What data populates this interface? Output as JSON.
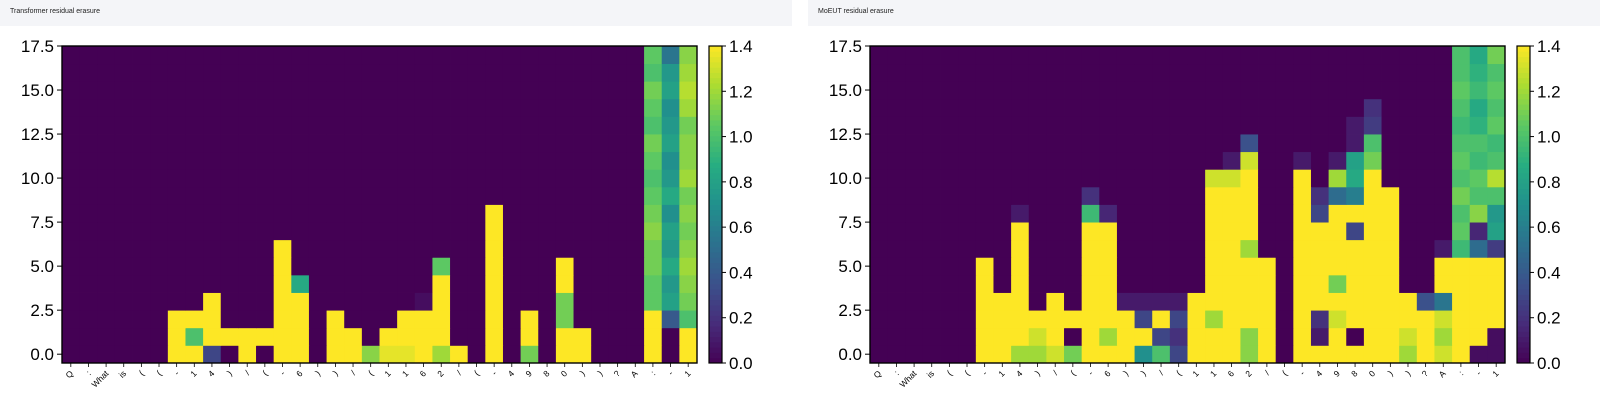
{
  "chart_data": [
    {
      "type": "heatmap",
      "title": "Transformer residual erasure",
      "x_tick_labels": [
        "Q",
        ":",
        "What",
        "is",
        "(",
        "(",
        "-",
        "1",
        "4",
        ")",
        "/",
        "(",
        "-",
        "6",
        ")",
        ")",
        "/",
        "(",
        "1",
        "1",
        "6",
        "2",
        "/",
        "(",
        "-",
        "4",
        "9",
        "8",
        "0",
        ")",
        ")",
        "?",
        "A",
        ":",
        "-",
        "1"
      ],
      "y_ticks": [
        0.0,
        2.5,
        5.0,
        7.5,
        10.0,
        12.5,
        15.0,
        17.5
      ],
      "y_tick_labels": [
        "0.0",
        "2.5",
        "5.0",
        "7.5",
        "10.0",
        "12.5",
        "15.0",
        "17.5"
      ],
      "ylim": [
        -0.5,
        17.5
      ],
      "colorbar": {
        "min": 0.0,
        "max": 1.4,
        "ticks": [
          "0.0",
          "0.2",
          "0.4",
          "0.6",
          "0.8",
          "1.0",
          "1.2",
          "1.4"
        ],
        "colormap": "viridis"
      },
      "columns": [
        {
          "x": 6,
          "base": [
            1.4,
            1.4,
            1.4
          ]
        },
        {
          "x": 7,
          "base": [
            1.4,
            1.0,
            1.4
          ]
        },
        {
          "x": 8,
          "base": [
            0.3,
            1.4,
            1.4,
            1.4
          ]
        },
        {
          "x": 9,
          "base": [
            0.0,
            1.4
          ]
        },
        {
          "x": 10,
          "base": [
            1.4,
            1.4
          ]
        },
        {
          "x": 11,
          "base": [
            0.0,
            1.4
          ]
        },
        {
          "x": 12,
          "base": [
            1.4,
            1.4,
            1.4,
            1.4,
            1.4,
            1.4,
            1.4
          ]
        },
        {
          "x": 13,
          "base": [
            1.4,
            1.4,
            1.4,
            1.4,
            0.85
          ]
        },
        {
          "x": 15,
          "base": [
            1.4,
            1.4,
            1.4
          ]
        },
        {
          "x": 16,
          "base": [
            1.4,
            1.4
          ]
        },
        {
          "x": 17,
          "base": [
            1.15
          ]
        },
        {
          "x": 18,
          "base": [
            1.35,
            1.4
          ]
        },
        {
          "x": 19,
          "base": [
            1.35,
            1.4,
            1.4
          ]
        },
        {
          "x": 20,
          "base": [
            1.4,
            1.4,
            1.4,
            0.05
          ]
        },
        {
          "x": 21,
          "base": [
            1.2,
            1.4,
            1.4,
            1.4,
            1.4,
            1.05
          ]
        },
        {
          "x": 22,
          "base": [
            1.4
          ]
        },
        {
          "x": 24,
          "base": [
            1.4,
            1.4,
            1.4,
            1.4,
            1.4,
            1.4,
            1.4,
            1.4,
            1.4
          ]
        },
        {
          "x": 26,
          "base": [
            1.1,
            1.4,
            1.4
          ]
        },
        {
          "x": 28,
          "base": [
            1.4,
            1.4,
            1.1,
            1.1,
            1.4,
            1.4
          ]
        },
        {
          "x": 29,
          "base": [
            1.4,
            1.4
          ]
        },
        {
          "x": 33,
          "base": [
            1.4,
            1.4,
            1.4
          ]
        },
        {
          "x": 35,
          "base": [
            1.4,
            1.4,
            1.0
          ]
        }
      ],
      "stripes": [
        {
          "x": 33,
          "from": 3,
          "values": [
            1.05,
            1.05,
            1.1,
            1.1,
            1.15,
            1.1,
            1.05,
            1.0,
            1.05,
            1.1,
            1.0,
            1.05,
            1.1,
            1.0,
            1.05
          ]
        },
        {
          "x": 34,
          "from": 2,
          "values": [
            0.4,
            0.8,
            0.75,
            0.85,
            0.75,
            0.8,
            0.7,
            0.85,
            0.75,
            0.7,
            0.8,
            0.75,
            0.7,
            0.8,
            0.75,
            0.55
          ]
        },
        {
          "x": 35,
          "from": 3,
          "values": [
            1.1,
            1.15,
            1.2,
            1.15,
            1.1,
            1.15,
            1.1,
            1.2,
            1.15,
            1.15,
            1.1,
            1.2,
            1.25,
            1.2,
            1.15
          ]
        }
      ]
    },
    {
      "type": "heatmap",
      "title": "MoEUT residual erasure",
      "x_tick_labels": [
        "Q",
        ":",
        "What",
        "is",
        "(",
        "(",
        "-",
        "1",
        "4",
        ")",
        "/",
        "(",
        "-",
        "6",
        ")",
        ")",
        "/",
        "(",
        "1",
        "1",
        "6",
        "2",
        "/",
        "(",
        "-",
        "4",
        "9",
        "8",
        "0",
        ")",
        ")",
        "?",
        "A",
        ":",
        "-",
        "1"
      ],
      "y_ticks": [
        0.0,
        2.5,
        5.0,
        7.5,
        10.0,
        12.5,
        15.0,
        17.5
      ],
      "y_tick_labels": [
        "0.0",
        "2.5",
        "5.0",
        "7.5",
        "10.0",
        "12.5",
        "15.0",
        "17.5"
      ],
      "ylim": [
        -0.5,
        17.5
      ],
      "colorbar": {
        "min": 0.0,
        "max": 1.4,
        "ticks": [
          "0.0",
          "0.2",
          "0.4",
          "0.6",
          "0.8",
          "1.0",
          "1.2",
          "1.4"
        ],
        "colormap": "viridis"
      },
      "columns": [
        {
          "x": 6,
          "base": [
            1.4,
            1.4,
            1.4,
            1.4,
            1.4,
            1.4
          ]
        },
        {
          "x": 7,
          "base": [
            1.4,
            1.4,
            1.4,
            1.4
          ]
        },
        {
          "x": 8,
          "base": [
            1.2,
            1.4,
            1.4,
            1.4,
            1.4,
            1.4,
            1.4,
            1.4,
            0.1
          ]
        },
        {
          "x": 9,
          "base": [
            1.2,
            1.3,
            1.4
          ]
        },
        {
          "x": 10,
          "base": [
            1.3,
            1.4,
            1.4,
            1.4
          ]
        },
        {
          "x": 11,
          "base": [
            1.1,
            0.0,
            1.4
          ]
        },
        {
          "x": 12,
          "base": [
            1.4,
            1.4,
            1.4,
            1.4,
            1.4,
            1.4,
            1.4,
            1.4,
            0.95,
            0.2
          ]
        },
        {
          "x": 13,
          "base": [
            1.4,
            1.2,
            1.4,
            1.4,
            1.4,
            1.4,
            1.4,
            1.4,
            0.15
          ]
        },
        {
          "x": 14,
          "base": [
            1.4,
            1.4,
            1.4,
            0.1
          ]
        },
        {
          "x": 15,
          "base": [
            0.7,
            1.4,
            0.3,
            0.1
          ]
        },
        {
          "x": 16,
          "base": [
            1.0,
            0.3,
            1.4,
            0.1
          ]
        },
        {
          "x": 17,
          "base": [
            0.3,
            0.2,
            0.3,
            0.1
          ]
        },
        {
          "x": 18,
          "base": [
            1.4,
            1.4,
            1.4,
            1.4
          ]
        },
        {
          "x": 19,
          "base": [
            1.4,
            1.4,
            1.2,
            1.4,
            1.4,
            1.4,
            1.4,
            1.4,
            1.4,
            1.4,
            1.3
          ]
        },
        {
          "x": 20,
          "base": [
            1.4,
            1.4,
            1.4,
            1.4,
            1.4,
            1.4,
            1.4,
            1.4,
            1.4,
            1.4,
            1.3,
            0.1
          ]
        },
        {
          "x": 21,
          "base": [
            1.15,
            1.15,
            1.4,
            1.4,
            1.4,
            1.4,
            1.2,
            1.4,
            1.4,
            1.4,
            1.4,
            1.3,
            0.35
          ]
        },
        {
          "x": 22,
          "base": [
            1.4,
            1.4,
            1.4,
            1.4,
            1.4,
            1.4
          ]
        },
        {
          "x": 24,
          "base": [
            1.4,
            1.4,
            1.4,
            1.4,
            1.4,
            1.4,
            1.4,
            1.4,
            1.4,
            1.4,
            1.4,
            0.1
          ]
        },
        {
          "x": 25,
          "base": [
            1.4,
            0.1,
            0.2,
            1.4,
            1.4,
            1.4,
            1.4,
            1.4,
            0.3,
            0.2
          ]
        },
        {
          "x": 26,
          "base": [
            1.4,
            1.4,
            1.3,
            1.4,
            1.1,
            1.4,
            1.4,
            1.4,
            1.4,
            0.5,
            1.2,
            0.1
          ]
        },
        {
          "x": 27,
          "base": [
            1.4,
            0.0,
            1.4,
            1.4,
            1.4,
            1.4,
            1.4,
            0.3,
            1.4,
            0.6,
            0.85,
            0.8,
            0.1,
            0.1
          ]
        },
        {
          "x": 28,
          "base": [
            1.4,
            1.4,
            1.4,
            1.4,
            1.4,
            1.4,
            1.4,
            1.4,
            1.4,
            1.4,
            1.4,
            1.1,
            1.0,
            0.25,
            0.2
          ]
        },
        {
          "x": 29,
          "base": [
            1.4,
            1.4,
            1.4,
            1.4,
            1.4,
            1.4,
            1.4,
            1.4,
            1.4,
            1.4
          ]
        },
        {
          "x": 30,
          "base": [
            1.2,
            1.3,
            1.4,
            1.4
          ]
        },
        {
          "x": 31,
          "base": [
            1.4,
            1.4,
            1.4,
            0.35
          ]
        },
        {
          "x": 32,
          "base": [
            1.3,
            1.2,
            1.3,
            0.55,
            1.4,
            1.4,
            0.1
          ]
        },
        {
          "x": 33,
          "base": [
            1.4,
            1.4,
            1.4,
            1.4,
            1.4,
            1.4,
            1.4,
            0.75
          ]
        },
        {
          "x": 34,
          "base": [
            0.05,
            1.4,
            1.4,
            1.4,
            1.4,
            1.4,
            1.4,
            1.4,
            1.4,
            1.4
          ]
        },
        {
          "x": 35,
          "base": [
            0.05,
            0.05,
            1.4,
            1.4,
            1.4,
            1.4,
            1.4,
            1.4,
            1.4,
            1.4,
            1.4,
            1.4
          ]
        }
      ],
      "stripes": [
        {
          "x": 33,
          "from": 6,
          "values": [
            0.95,
            1.05,
            1.0,
            1.1,
            1.0,
            1.05,
            1.0,
            0.95,
            1.0,
            1.05,
            1.0,
            1.0
          ]
        },
        {
          "x": 34,
          "from": 6,
          "values": [
            0.5,
            0.15,
            1.15,
            1.0,
            1.05,
            0.95,
            1.0,
            0.9,
            0.85,
            0.95,
            0.9,
            0.85
          ]
        },
        {
          "x": 35,
          "from": 6,
          "values": [
            0.25,
            0.8,
            0.75,
            1.0,
            1.25,
            1.0,
            0.95,
            1.05,
            1.0,
            1.05,
            1.0,
            1.1
          ]
        }
      ]
    }
  ]
}
